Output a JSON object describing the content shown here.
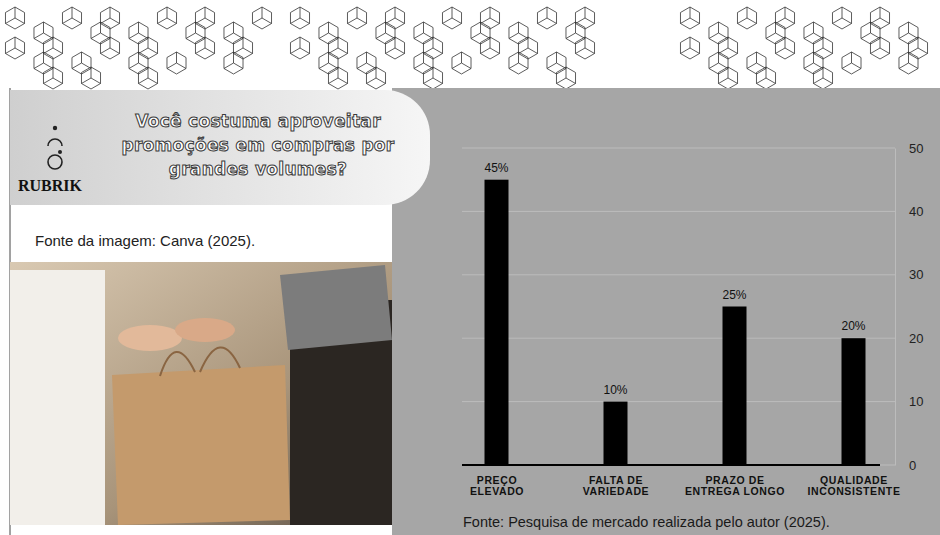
{
  "header": {
    "brand": "RUBRIK"
  },
  "image": {
    "caption": "Fonte da imagem: Canva (2025)."
  },
  "chart_data": {
    "type": "bar",
    "title": "Você costuma aproveitar promoções em compras por grandes volumes?",
    "categories": [
      "PREÇO ELEVADO",
      "FALTA DE VARIEDADE",
      "PRAZO DE ENTREGA LONGO",
      "QUALIDADE INCONSISTENTE"
    ],
    "values": [
      45,
      10,
      25,
      20
    ],
    "value_labels": [
      "45%",
      "10%",
      "25%",
      "20%"
    ],
    "color": "#000000",
    "ylim": [
      0,
      50
    ],
    "yticks": [
      0,
      10,
      20,
      30,
      40,
      50
    ],
    "grid": true,
    "data_labels": true,
    "annotations": [
      "Fonte: Pesquisa de mercado realizada pelo autor (2025)."
    ]
  }
}
